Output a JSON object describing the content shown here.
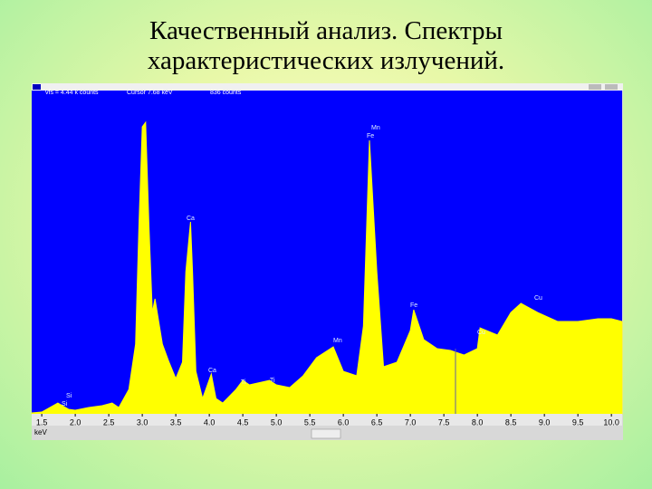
{
  "title_line1": "Качественный анализ. Спектры",
  "title_line2": "характеристических излучений.",
  "chart_data": {
    "type": "area",
    "header": [
      "vfs = 4.44 k counts",
      "Cursor 7.68 keV",
      "836 counts"
    ],
    "x_label": "keV",
    "x": [
      1.35,
      1.5,
      1.74,
      1.9,
      2.0,
      2.2,
      2.4,
      2.55,
      2.65,
      2.8,
      2.9,
      2.95,
      3.0,
      3.05,
      3.1,
      3.15,
      3.19,
      3.3,
      3.4,
      3.5,
      3.6,
      3.65,
      3.72,
      3.75,
      3.8,
      3.9,
      4.03,
      4.1,
      4.2,
      4.4,
      4.5,
      4.6,
      4.9,
      5.0,
      5.2,
      5.4,
      5.6,
      5.85,
      6.0,
      6.2,
      6.3,
      6.39,
      6.5,
      6.6,
      6.8,
      7.0,
      7.05,
      7.2,
      7.4,
      7.6,
      7.8,
      8.0,
      8.04,
      8.3,
      8.5,
      8.65,
      8.9,
      9.2,
      9.5,
      9.8,
      10.0,
      10.16
    ],
    "series": [
      {
        "color": "#ffff00",
        "values": [
          13,
          25,
          150,
          63,
          50,
          88,
          113,
          150,
          88,
          339,
          966,
          2596,
          3975,
          4038,
          2596,
          1404,
          1593,
          966,
          715,
          489,
          715,
          1969,
          2658,
          1969,
          589,
          213,
          552,
          213,
          150,
          339,
          464,
          401,
          464,
          401,
          364,
          527,
          777,
          928,
          589,
          527,
          1216,
          3787,
          1969,
          652,
          715,
          1154,
          1442,
          1028,
          903,
          878,
          815,
          903,
          1191,
          1091,
          1404,
          1530,
          1404,
          1279,
          1279,
          1317,
          1317,
          1279
        ]
      }
    ],
    "plot_background": "#0000ff",
    "xlim": [
      1.35,
      10.16
    ],
    "ylim": [
      0,
      4440
    ],
    "xticks": [
      1.5,
      {
        "value": 2,
        "label": "2.0"
      },
      2.5,
      {
        "value": 3,
        "label": "3.0"
      },
      3.5,
      {
        "value": 4,
        "label": "4.0"
      },
      4.5,
      {
        "value": 5,
        "label": "5.0"
      },
      5.5,
      {
        "value": 6,
        "label": "6.0"
      },
      6.5,
      {
        "value": 7,
        "label": "7.0"
      },
      7.5,
      {
        "value": 8,
        "label": "8.0"
      },
      8.5,
      {
        "value": 9,
        "label": "9.0"
      },
      9.5,
      {
        "value": 10,
        "label": "10.0"
      }
    ],
    "peak_labels": [
      "Si",
      "Si",
      "Ca",
      "Ca",
      "Ti",
      "Ti",
      "Mn",
      "Mn",
      "Fe",
      "Fe",
      "Cu",
      "Cu"
    ]
  }
}
